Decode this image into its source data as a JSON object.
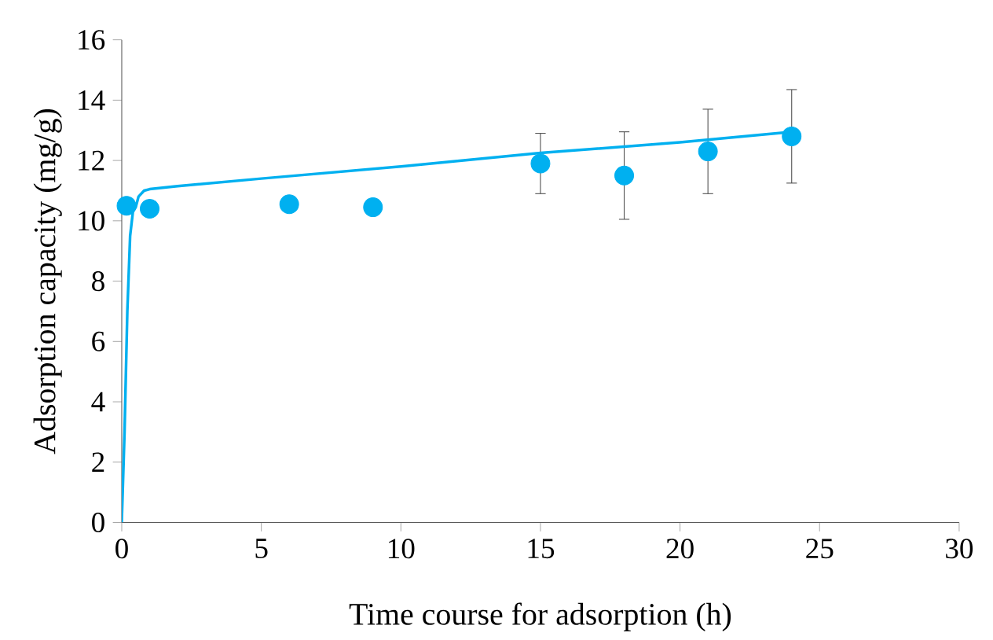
{
  "chart_data": {
    "type": "scatter",
    "xlabel": "Time course for adsorption (h)",
    "ylabel": "Adsorption capacity (mg/g)",
    "xlim": [
      0,
      30
    ],
    "ylim": [
      0,
      16
    ],
    "xticks": [
      0,
      5,
      10,
      15,
      20,
      25,
      30
    ],
    "yticks": [
      0,
      2,
      4,
      6,
      8,
      10,
      12,
      14,
      16
    ],
    "grid": false,
    "marker": "circle",
    "series": [
      {
        "color": "#00b0f0",
        "x": [
          0.17,
          1,
          6,
          9,
          15,
          18,
          21,
          24
        ],
        "values": [
          10.5,
          10.4,
          10.55,
          10.45,
          11.9,
          11.5,
          12.3,
          12.8
        ],
        "errors": [
          null,
          null,
          null,
          null,
          1.0,
          1.45,
          1.4,
          1.55
        ]
      },
      {
        "type": "line",
        "color": "#00b0f0",
        "marker": "none",
        "x": [
          0,
          0.1,
          0.2,
          0.3,
          0.4,
          0.5,
          0.6,
          0.8,
          1,
          2,
          5,
          10,
          15,
          20,
          24
        ],
        "values": [
          0,
          3,
          7,
          9.5,
          10.3,
          10.45,
          10.8,
          11.0,
          11.05,
          11.15,
          11.4,
          11.8,
          12.25,
          12.6,
          12.95
        ]
      }
    ]
  }
}
